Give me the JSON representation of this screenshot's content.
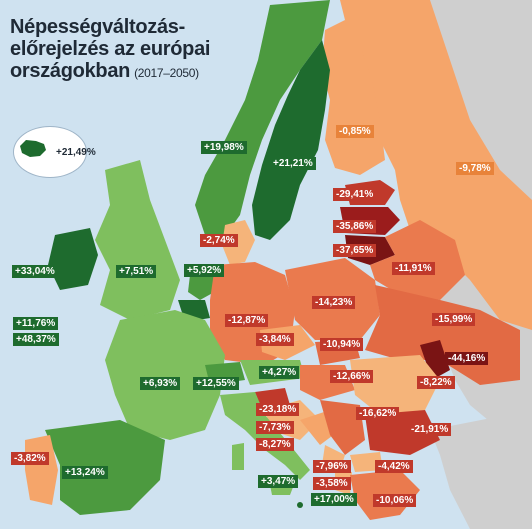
{
  "title": {
    "line1": "Népességváltozás-",
    "line2": "előrejelzés az európai",
    "line3": "országokban",
    "period": "(2017–2050)"
  },
  "colors": {
    "strong_growth": "#1e6b2e",
    "growth": "#4c9a3f",
    "light_growth": "#7fbf5e",
    "light_decline": "#f5b47a",
    "decline": "#ea7a4e",
    "strong_decline": "#c0392b",
    "severe_decline": "#7a1414",
    "non_eu": "#cfcfcf",
    "sea": "#cfe2f0"
  },
  "labels": {
    "iceland": "+21,49%",
    "norway": "+19,98%",
    "sweden": "+21,21%",
    "finland": "-0,85%",
    "russia_region": "-9,78%",
    "estonia": "-29,41%",
    "latvia": "-35,86%",
    "lithuania": "-37,65%",
    "denmark": "-2,74%",
    "belarus": "-11,91%",
    "ireland": "+33,04%",
    "uk": "+7,51%",
    "netherlands": "+5,92%",
    "belgium": "+11,76%",
    "luxembourg": "+48,37%",
    "germany": "-12,87%",
    "poland": "-14,23%",
    "ukraine": "-15,99%",
    "czechia": "-3,84%",
    "slovakia": "-10,94%",
    "moldova": "-44,16%",
    "france": "+6,93%",
    "switzerland": "+12,55%",
    "austria": "+4,27%",
    "hungary": "-12,66%",
    "romania": "-8,22%",
    "slovenia": "-23,18%",
    "croatia": "-7,73%",
    "bosnia": "-8,27%",
    "serbia": "-16,62%",
    "bulgaria": "-21,91%",
    "portugal": "-3,82%",
    "spain": "+13,24%",
    "montenegro": "-7,96%",
    "macedonia": "-4,42%",
    "albania": "-3,58%",
    "italy": "+3,47%",
    "malta": "+17,00%",
    "greece": "-10,06%"
  }
}
